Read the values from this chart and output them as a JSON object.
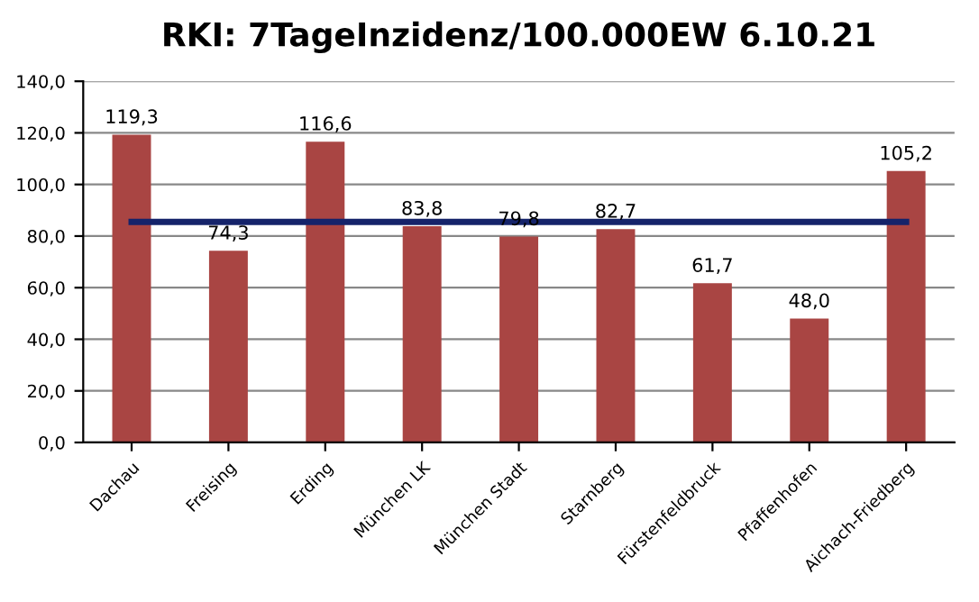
{
  "chart_data": {
    "type": "bar",
    "title": "RKI: 7TageInzidenz/100.000EW 6.10.21",
    "categories": [
      "Dachau",
      "Freising",
      "Erding",
      "München LK",
      "München Stadt",
      "Starnberg",
      "Fürstenfeldbruck",
      "Pfaffenhofen",
      "Aichach-Friedberg"
    ],
    "series": [
      {
        "color": "#a94543",
        "values": [
          119.3,
          74.3,
          116.6,
          83.8,
          79.8,
          82.7,
          61.7,
          48.0,
          105.2
        ],
        "value_labels": [
          "119,3",
          "74,3",
          "116,6",
          "83,8",
          "79,8",
          "82,7",
          "61,7",
          "48,0",
          "105,2"
        ]
      },
      {
        "type": "line",
        "color": "#15236a",
        "values": [
          85.5,
          85.5,
          85.5,
          85.5,
          85.5,
          85.5,
          85.5,
          85.5,
          85.5
        ]
      }
    ],
    "ylim": [
      0,
      140
    ],
    "yticks": [
      {
        "value": 0,
        "label": "0,0"
      },
      {
        "value": 20,
        "label": "20,0"
      },
      {
        "value": 40,
        "label": "40,0"
      },
      {
        "value": 60,
        "label": "60,0"
      },
      {
        "value": 80,
        "label": "80,0"
      },
      {
        "value": 100,
        "label": "100,0"
      },
      {
        "value": 120,
        "label": "120,0"
      },
      {
        "value": 140,
        "label": "140,0"
      }
    ],
    "grid": "y",
    "marker": "none",
    "line_style": "solid"
  }
}
